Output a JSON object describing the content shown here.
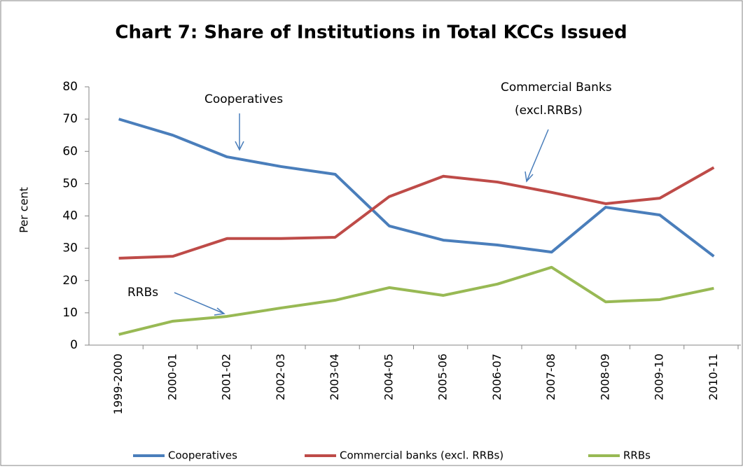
{
  "chart_data": {
    "type": "line",
    "title": "Chart 7: Share of Institutions in Total KCCs Issued",
    "y_label": "Per cent",
    "annotations": [
      "Cooperatives",
      "Commercial Banks",
      "(excl.RRBs)",
      "RRBs"
    ],
    "categories": [
      "1999-2000",
      "2000-01",
      "2001-02",
      "2002-03",
      "2003-04",
      "2004-05",
      "2005-06",
      "2006-07",
      "2007-08",
      "2008-09",
      "2009-10",
      "2010-11"
    ],
    "series": [
      {
        "name": "Cooperatives",
        "color": "#4a7ebb",
        "values": [
          70,
          65,
          58.3,
          55.3,
          52.9,
          36.9,
          32.5,
          31,
          28.8,
          42.7,
          40.3,
          27.5
        ]
      },
      {
        "name": "Commercial banks (excl. RRBs)",
        "color": "#be4b48",
        "values": [
          26.9,
          27.5,
          33,
          33,
          33.4,
          46,
          52.3,
          50.5,
          47.3,
          43.8,
          45.5,
          55
        ]
      },
      {
        "name": "RRBs",
        "color": "#98b954",
        "values": [
          3.3,
          7.4,
          8.9,
          11.5,
          13.9,
          17.8,
          15.4,
          18.9,
          24.1,
          13.4,
          14.1,
          17.6
        ]
      }
    ],
    "ylim": [
      0,
      80
    ],
    "yticks": [
      0,
      10,
      20,
      30,
      40,
      50,
      60,
      70,
      80
    ],
    "legend": "bottom"
  }
}
